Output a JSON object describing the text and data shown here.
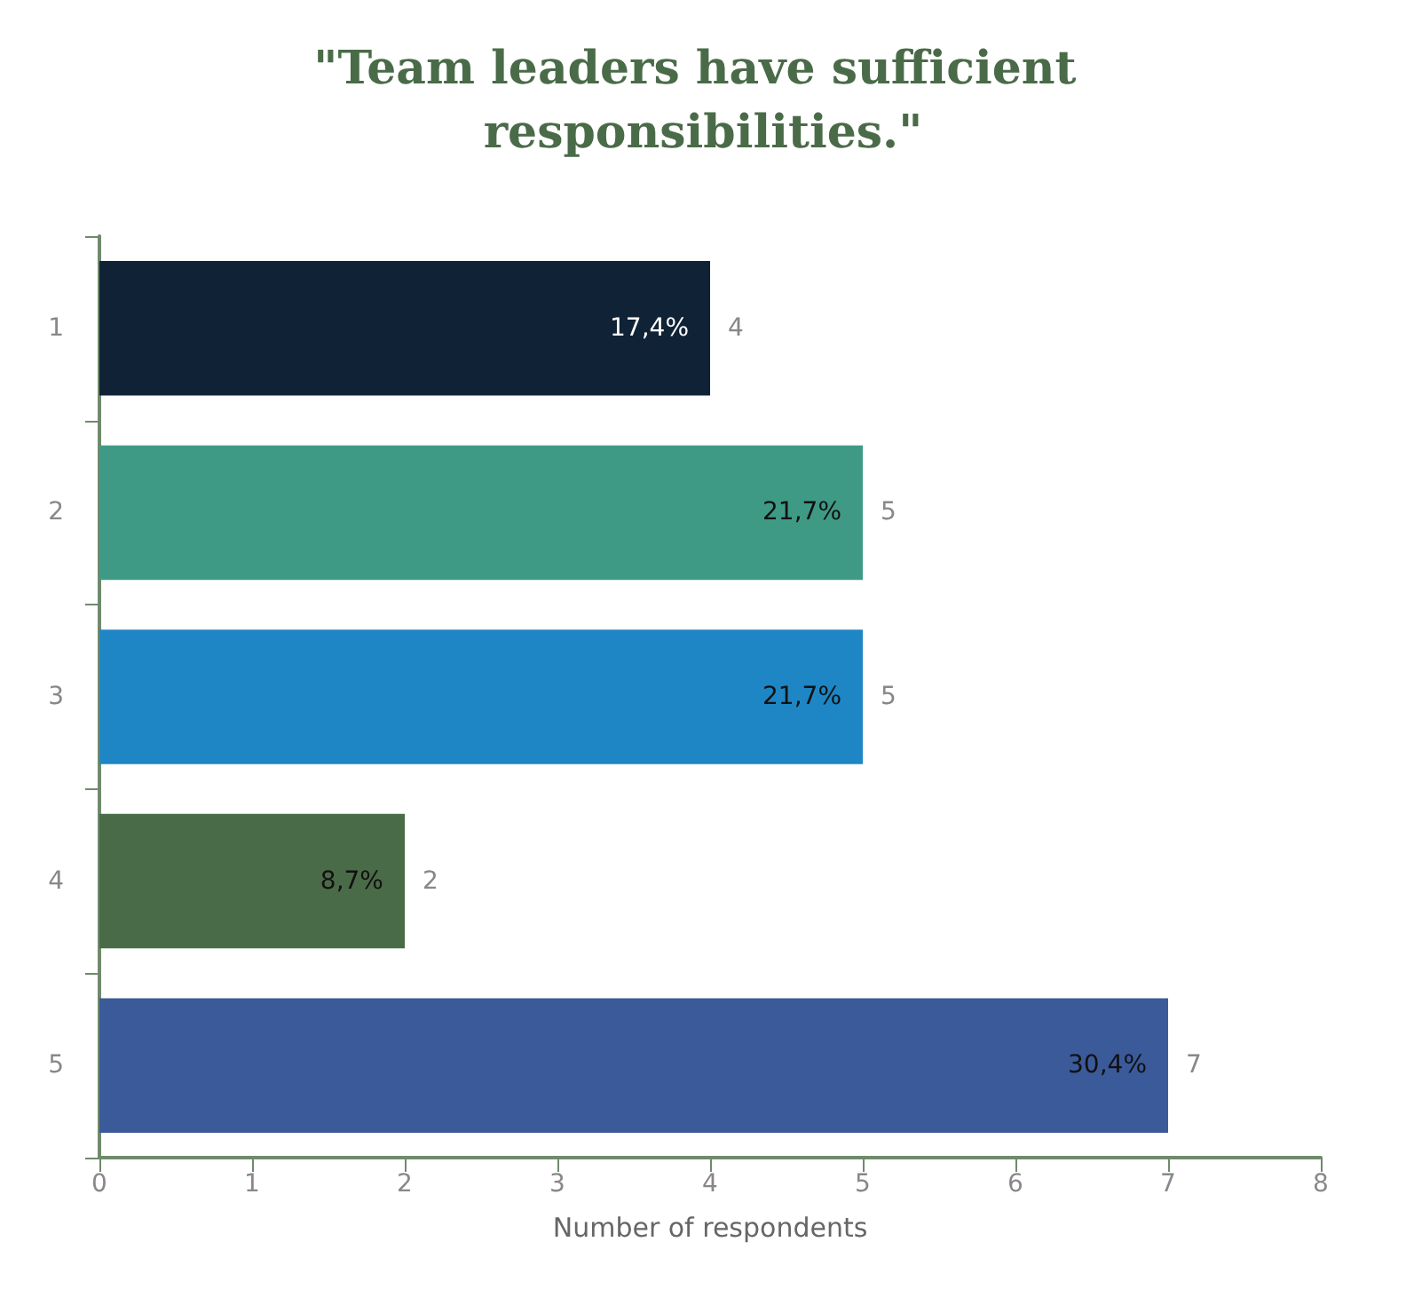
{
  "chart_data": {
    "type": "bar",
    "orientation": "horizontal",
    "title": "\"Team leaders have sufficient responsibilities.\"",
    "xlabel": "Number of respondents",
    "categories": [
      "1",
      "2",
      "3",
      "4",
      "5"
    ],
    "values": [
      4,
      5,
      5,
      2,
      7
    ],
    "colors": [
      "#0f2236",
      "#3f9a85",
      "#1e86c4",
      "#4a6b48",
      "#3b5a9a"
    ],
    "annotations": [
      {
        "text": "17,4%",
        "x": 4,
        "y": "1"
      },
      {
        "text": "21,7%",
        "x": 5,
        "y": "2"
      },
      {
        "text": "21,7%",
        "x": 5,
        "y": "3"
      },
      {
        "text": "8,7%",
        "x": 2,
        "y": "4"
      },
      {
        "text": "30,4%",
        "x": 7,
        "y": "5"
      }
    ],
    "data_labels": true,
    "xlim": [
      0,
      8
    ],
    "xticks": [
      0,
      1,
      2,
      3,
      4,
      5,
      6,
      7,
      8
    ],
    "grid": false
  }
}
